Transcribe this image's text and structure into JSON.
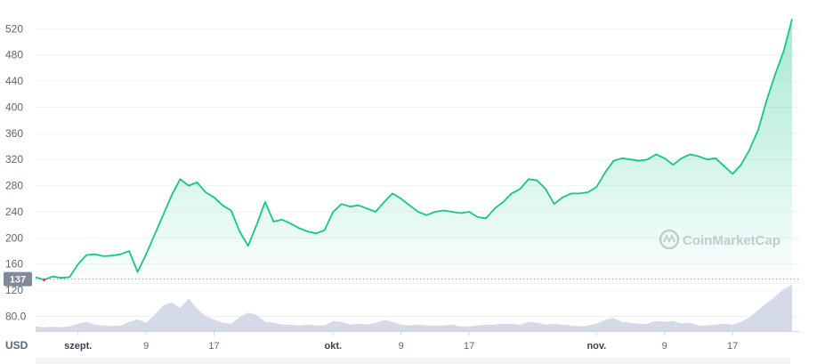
{
  "chart_data": {
    "type": "area",
    "title": "",
    "xlabel": "",
    "ylabel": "",
    "currency": "USD",
    "grid": true,
    "watermark": "CoinMarketCap",
    "y_ticks": [
      80.0,
      120,
      160,
      200,
      240,
      280,
      320,
      360,
      400,
      440,
      480,
      520
    ],
    "y_tick_labels": [
      "80.0",
      "120",
      "160",
      "200",
      "240",
      "280",
      "320",
      "360",
      "400",
      "440",
      "480",
      "520"
    ],
    "x_ticks": [
      {
        "label": "szept.",
        "date": "2021-09-01",
        "bold": true
      },
      {
        "label": "9",
        "date": "2021-09-09",
        "bold": false
      },
      {
        "label": "17",
        "date": "2021-09-17",
        "bold": false
      },
      {
        "label": "okt.",
        "date": "2021-10-01",
        "bold": true
      },
      {
        "label": "9",
        "date": "2021-10-09",
        "bold": false
      },
      {
        "label": "17",
        "date": "2021-10-17",
        "bold": false
      },
      {
        "label": "nov.",
        "date": "2021-11-01",
        "bold": true
      },
      {
        "label": "9",
        "date": "2021-11-09",
        "bold": false
      },
      {
        "label": "17",
        "date": "2021-11-17",
        "bold": false
      }
    ],
    "reference_line": {
      "value": 137,
      "label": "137"
    },
    "series": [
      {
        "color": "#16c784",
        "points": [
          [
            "2021-08-27",
            140
          ],
          [
            "2021-08-28",
            136
          ],
          [
            "2021-08-29",
            141
          ],
          [
            "2021-08-30",
            139
          ],
          [
            "2021-08-31",
            140
          ],
          [
            "2021-09-01",
            160
          ],
          [
            "2021-09-02",
            174
          ],
          [
            "2021-09-03",
            175
          ],
          [
            "2021-09-04",
            172
          ],
          [
            "2021-09-05",
            173
          ],
          [
            "2021-09-06",
            175
          ],
          [
            "2021-09-07",
            180
          ],
          [
            "2021-09-08",
            148
          ],
          [
            "2021-09-09",
            175
          ],
          [
            "2021-09-10",
            205
          ],
          [
            "2021-09-11",
            235
          ],
          [
            "2021-09-12",
            265
          ],
          [
            "2021-09-13",
            290
          ],
          [
            "2021-09-14",
            280
          ],
          [
            "2021-09-15",
            285
          ],
          [
            "2021-09-16",
            270
          ],
          [
            "2021-09-17",
            262
          ],
          [
            "2021-09-18",
            250
          ],
          [
            "2021-09-19",
            242
          ],
          [
            "2021-09-20",
            210
          ],
          [
            "2021-09-21",
            188
          ],
          [
            "2021-09-22",
            220
          ],
          [
            "2021-09-23",
            255
          ],
          [
            "2021-09-24",
            225
          ],
          [
            "2021-09-25",
            228
          ],
          [
            "2021-09-26",
            222
          ],
          [
            "2021-09-27",
            215
          ],
          [
            "2021-09-28",
            210
          ],
          [
            "2021-09-29",
            207
          ],
          [
            "2021-09-30",
            212
          ],
          [
            "2021-10-01",
            240
          ],
          [
            "2021-10-02",
            252
          ],
          [
            "2021-10-03",
            248
          ],
          [
            "2021-10-04",
            250
          ],
          [
            "2021-10-05",
            245
          ],
          [
            "2021-10-06",
            240
          ],
          [
            "2021-10-07",
            255
          ],
          [
            "2021-10-08",
            268
          ],
          [
            "2021-10-09",
            260
          ],
          [
            "2021-10-10",
            250
          ],
          [
            "2021-10-11",
            240
          ],
          [
            "2021-10-12",
            235
          ],
          [
            "2021-10-13",
            240
          ],
          [
            "2021-10-14",
            242
          ],
          [
            "2021-10-15",
            240
          ],
          [
            "2021-10-16",
            238
          ],
          [
            "2021-10-17",
            240
          ],
          [
            "2021-10-18",
            232
          ],
          [
            "2021-10-19",
            230
          ],
          [
            "2021-10-20",
            245
          ],
          [
            "2021-10-21",
            255
          ],
          [
            "2021-10-22",
            268
          ],
          [
            "2021-10-23",
            275
          ],
          [
            "2021-10-24",
            290
          ],
          [
            "2021-10-25",
            288
          ],
          [
            "2021-10-26",
            275
          ],
          [
            "2021-10-27",
            252
          ],
          [
            "2021-10-28",
            262
          ],
          [
            "2021-10-29",
            268
          ],
          [
            "2021-10-30",
            268
          ],
          [
            "2021-10-31",
            270
          ],
          [
            "2021-11-01",
            278
          ],
          [
            "2021-11-02",
            300
          ],
          [
            "2021-11-03",
            318
          ],
          [
            "2021-11-04",
            322
          ],
          [
            "2021-11-05",
            320
          ],
          [
            "2021-11-06",
            318
          ],
          [
            "2021-11-07",
            320
          ],
          [
            "2021-11-08",
            328
          ],
          [
            "2021-11-09",
            322
          ],
          [
            "2021-11-10",
            312
          ],
          [
            "2021-11-11",
            322
          ],
          [
            "2021-11-12",
            328
          ],
          [
            "2021-11-13",
            325
          ],
          [
            "2021-11-14",
            320
          ],
          [
            "2021-11-15",
            322
          ],
          [
            "2021-11-16",
            310
          ],
          [
            "2021-11-17",
            298
          ],
          [
            "2021-11-18",
            312
          ],
          [
            "2021-11-19",
            335
          ],
          [
            "2021-11-20",
            365
          ],
          [
            "2021-11-21",
            410
          ],
          [
            "2021-11-22",
            450
          ],
          [
            "2021-11-23",
            485
          ],
          [
            "2021-11-24",
            535
          ]
        ]
      }
    ],
    "volume_series": [
      [
        "2021-08-27",
        0.1
      ],
      [
        "2021-08-28",
        0.08
      ],
      [
        "2021-08-29",
        0.09
      ],
      [
        "2021-08-30",
        0.08
      ],
      [
        "2021-08-31",
        0.1
      ],
      [
        "2021-09-01",
        0.16
      ],
      [
        "2021-09-02",
        0.2
      ],
      [
        "2021-09-03",
        0.14
      ],
      [
        "2021-09-04",
        0.12
      ],
      [
        "2021-09-05",
        0.11
      ],
      [
        "2021-09-06",
        0.12
      ],
      [
        "2021-09-07",
        0.2
      ],
      [
        "2021-09-08",
        0.25
      ],
      [
        "2021-09-09",
        0.18
      ],
      [
        "2021-09-10",
        0.35
      ],
      [
        "2021-09-11",
        0.55
      ],
      [
        "2021-09-12",
        0.62
      ],
      [
        "2021-09-13",
        0.5
      ],
      [
        "2021-09-14",
        0.7
      ],
      [
        "2021-09-15",
        0.48
      ],
      [
        "2021-09-16",
        0.32
      ],
      [
        "2021-09-17",
        0.25
      ],
      [
        "2021-09-18",
        0.18
      ],
      [
        "2021-09-19",
        0.16
      ],
      [
        "2021-09-20",
        0.3
      ],
      [
        "2021-09-21",
        0.4
      ],
      [
        "2021-09-22",
        0.35
      ],
      [
        "2021-09-23",
        0.2
      ],
      [
        "2021-09-24",
        0.18
      ],
      [
        "2021-09-25",
        0.14
      ],
      [
        "2021-09-26",
        0.14
      ],
      [
        "2021-09-27",
        0.12
      ],
      [
        "2021-09-28",
        0.14
      ],
      [
        "2021-09-29",
        0.12
      ],
      [
        "2021-09-30",
        0.12
      ],
      [
        "2021-10-01",
        0.22
      ],
      [
        "2021-10-02",
        0.2
      ],
      [
        "2021-10-03",
        0.14
      ],
      [
        "2021-10-04",
        0.16
      ],
      [
        "2021-10-05",
        0.14
      ],
      [
        "2021-10-06",
        0.18
      ],
      [
        "2021-10-07",
        0.24
      ],
      [
        "2021-10-08",
        0.2
      ],
      [
        "2021-10-09",
        0.14
      ],
      [
        "2021-10-10",
        0.12
      ],
      [
        "2021-10-11",
        0.14
      ],
      [
        "2021-10-12",
        0.12
      ],
      [
        "2021-10-13",
        0.12
      ],
      [
        "2021-10-14",
        0.12
      ],
      [
        "2021-10-15",
        0.14
      ],
      [
        "2021-10-16",
        0.1
      ],
      [
        "2021-10-17",
        0.1
      ],
      [
        "2021-10-18",
        0.12
      ],
      [
        "2021-10-19",
        0.14
      ],
      [
        "2021-10-20",
        0.14
      ],
      [
        "2021-10-21",
        0.16
      ],
      [
        "2021-10-22",
        0.16
      ],
      [
        "2021-10-23",
        0.14
      ],
      [
        "2021-10-24",
        0.2
      ],
      [
        "2021-10-25",
        0.18
      ],
      [
        "2021-10-26",
        0.14
      ],
      [
        "2021-10-27",
        0.16
      ],
      [
        "2021-10-28",
        0.14
      ],
      [
        "2021-10-29",
        0.12
      ],
      [
        "2021-10-30",
        0.1
      ],
      [
        "2021-10-31",
        0.12
      ],
      [
        "2021-11-01",
        0.16
      ],
      [
        "2021-11-02",
        0.24
      ],
      [
        "2021-11-03",
        0.28
      ],
      [
        "2021-11-04",
        0.2
      ],
      [
        "2021-11-05",
        0.18
      ],
      [
        "2021-11-06",
        0.16
      ],
      [
        "2021-11-07",
        0.16
      ],
      [
        "2021-11-08",
        0.22
      ],
      [
        "2021-11-09",
        0.2
      ],
      [
        "2021-11-10",
        0.22
      ],
      [
        "2021-11-11",
        0.16
      ],
      [
        "2021-11-12",
        0.18
      ],
      [
        "2021-11-13",
        0.12
      ],
      [
        "2021-11-14",
        0.12
      ],
      [
        "2021-11-15",
        0.14
      ],
      [
        "2021-11-16",
        0.16
      ],
      [
        "2021-11-17",
        0.14
      ],
      [
        "2021-11-18",
        0.2
      ],
      [
        "2021-11-19",
        0.3
      ],
      [
        "2021-11-20",
        0.45
      ],
      [
        "2021-11-21",
        0.6
      ],
      [
        "2021-11-22",
        0.75
      ],
      [
        "2021-11-23",
        0.9
      ],
      [
        "2021-11-24",
        1.0
      ]
    ],
    "colors": {
      "line": "#16c784",
      "area_top": "#16c784",
      "line_below_ref": "#ea3943",
      "volume": "#cfd6e4",
      "badge": "#808a9d",
      "grid": "#eff2f5",
      "axis_text": "#58667e"
    }
  }
}
